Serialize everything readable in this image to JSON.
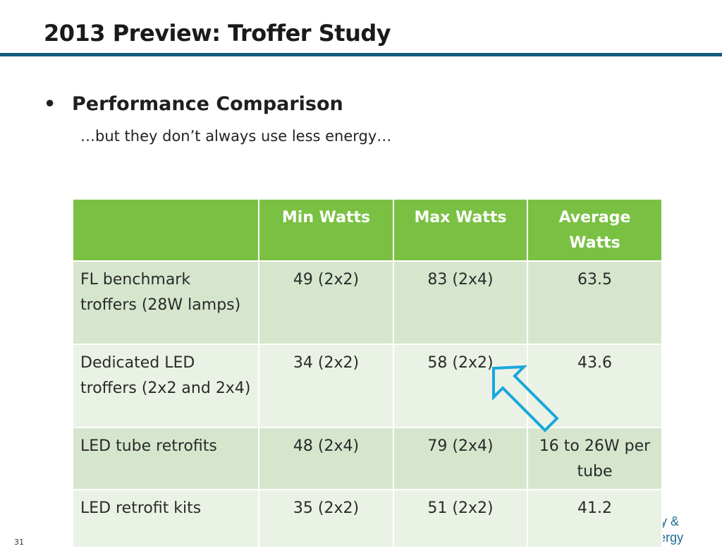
{
  "slide": {
    "title": "2013 Preview: Troffer Study",
    "bullet": "Performance Comparison",
    "subtext": "…but they don’t always use less energy…",
    "slide_number": "31"
  },
  "table": {
    "headers": [
      "",
      "Min Watts",
      "Max Watts",
      "Average Watts"
    ],
    "rows": [
      [
        "FL benchmark troffers (28W lamps)",
        "49 (2x2)",
        "83 (2x4)",
        "63.5"
      ],
      [
        "Dedicated LED troffers (2x2 and 2x4)",
        "34 (2x2)",
        "58 (2x2)",
        "43.6"
      ],
      [
        "LED tube retrofits",
        "48 (2x4)",
        "79 (2x4)",
        "16 to 26W per tube"
      ],
      [
        "LED retrofit kits",
        "35 (2x2)",
        "51 (2x2)",
        "41.2"
      ]
    ]
  },
  "footer_logo": {
    "line1": "cy &",
    "line2": "Renewable Energy"
  },
  "colors": {
    "header_green": "#7ac143",
    "rule_blue": "#125d7a",
    "arrow_cyan": "#1aa7dc",
    "row_dark": "#d6e6cd",
    "row_light": "#eaf2e6"
  },
  "icons": {
    "callout_arrow": "arrow-up-left-icon"
  }
}
